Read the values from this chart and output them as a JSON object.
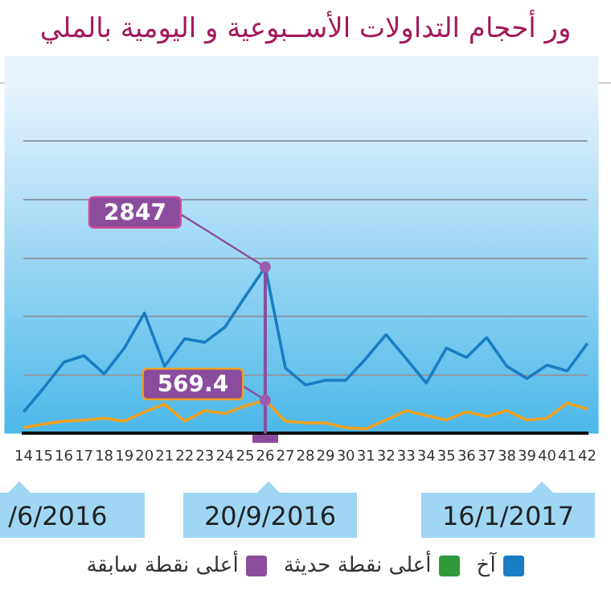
{
  "chart_data": {
    "type": "line",
    "title": "ور أحجام التداولات الأســبوعية و اليومية بالملي",
    "categories": [
      "14",
      "15",
      "16",
      "17",
      "18",
      "19",
      "20",
      "21",
      "22",
      "23",
      "24",
      "25",
      "26",
      "27",
      "28",
      "29",
      "30",
      "31",
      "32",
      "33",
      "34",
      "35",
      "36",
      "37",
      "38",
      "39",
      "40",
      "41",
      "42"
    ],
    "ylim": [
      0,
      5900
    ],
    "yticks": [
      {
        "value": 0,
        "label": null
      },
      {
        "value": 1000,
        "label": null
      },
      {
        "value": 2000,
        "label": null
      },
      {
        "value": 3000,
        "label": null
      },
      {
        "value": 4000,
        "label": null
      },
      {
        "value": 5000,
        "label": null
      }
    ],
    "tick_labels": "x",
    "series": [
      {
        "color": "#1a7dc4",
        "values": [
          370,
          780,
          1220,
          1330,
          1020,
          1460,
          2060,
          1150,
          1620,
          1560,
          1820,
          2340,
          2847,
          1120,
          830,
          910,
          910,
          1280,
          1690,
          1280,
          860,
          1460,
          1300,
          1640,
          1150,
          940,
          1170,
          1070,
          1540
        ],
        "value_labels": [
          null,
          null,
          null,
          null,
          null,
          null,
          null,
          null,
          null,
          null,
          null,
          null,
          "2847",
          null,
          null,
          null,
          null,
          null,
          null,
          null,
          null,
          null,
          null,
          null,
          null,
          null,
          null,
          null,
          null
        ]
      },
      {
        "color": "#f0a020",
        "values": [
          100,
          160,
          210,
          230,
          260,
          210,
          370,
          500,
          210,
          390,
          340,
          470,
          569.4,
          210,
          180,
          180,
          100,
          80,
          230,
          390,
          310,
          230,
          370,
          290,
          390,
          230,
          260,
          520,
          420
        ],
        "value_labels": [
          null,
          null,
          null,
          null,
          null,
          null,
          null,
          null,
          null,
          null,
          null,
          null,
          "569.4",
          null,
          null,
          null,
          null,
          null,
          null,
          null,
          null,
          null,
          null,
          null,
          null,
          null,
          null,
          null,
          null
        ]
      }
    ],
    "grid": "y",
    "legend": false,
    "marker": "none",
    "line_style": "solid",
    "ref_lines": [
      {
        "axis": "x",
        "value": "26",
        "color": "#8b4c9e"
      }
    ],
    "annotations": [
      "/6/2016",
      "20/9/2016",
      "16/1/2017",
      "آخ",
      "أعلى نقطة حديثة",
      "أعلى نقطة سابقة"
    ]
  }
}
